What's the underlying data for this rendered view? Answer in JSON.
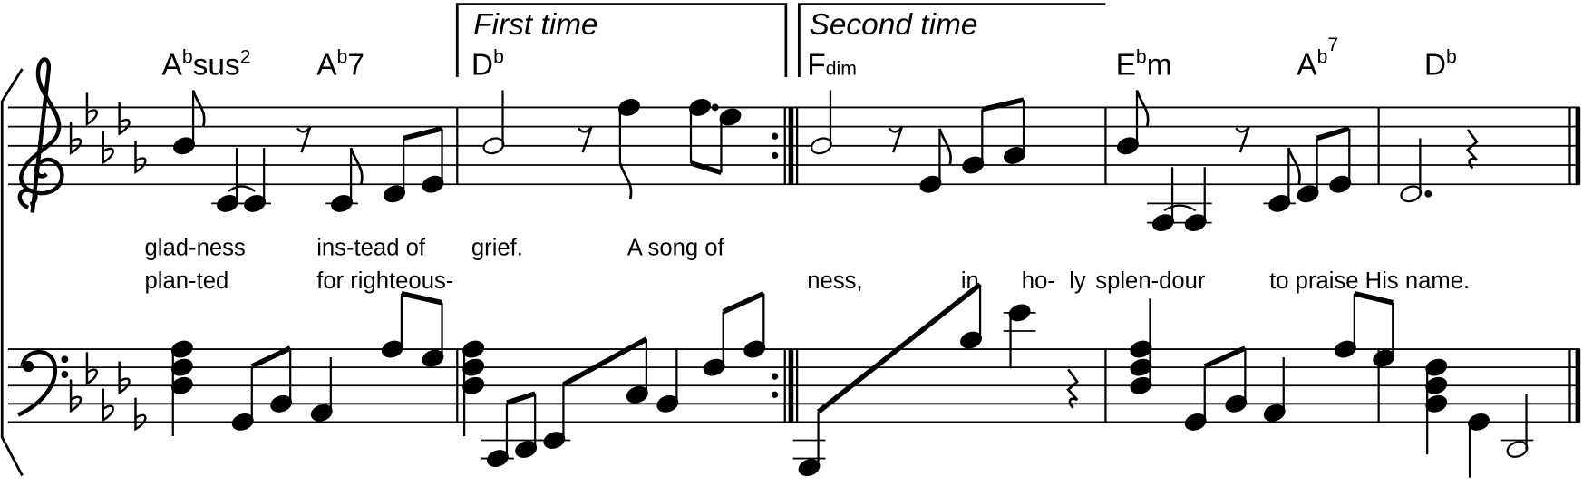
{
  "volta": [
    "First time",
    "Second time"
  ],
  "chords": [
    {
      "root": "A",
      "accidental": "b",
      "quality": "sus",
      "extension": "2"
    },
    {
      "root": "A",
      "accidental": "b",
      "quality": "7"
    },
    {
      "root": "D",
      "accidental": "b"
    },
    {
      "root": "F",
      "quality": "dim"
    },
    {
      "root": "E",
      "accidental": "b",
      "quality": "m"
    },
    {
      "root": "A",
      "accidental": "b",
      "extension": "7"
    },
    {
      "root": "D",
      "accidental": "b"
    }
  ],
  "lyrics": {
    "verse1": [
      "glad-ness",
      "ins-tead of",
      "grief.",
      "A song of"
    ],
    "verse2": [
      "plan-ted",
      "for righteous-",
      "ness,",
      "in",
      "ho-",
      "ly",
      "splen-dour",
      "to praise His name."
    ]
  }
}
